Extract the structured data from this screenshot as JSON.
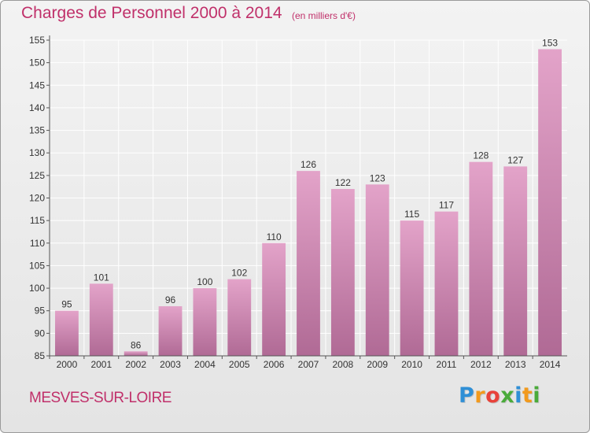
{
  "header": {
    "title": "Charges de Personnel 2000 à 2014",
    "subtitle": "(en milliers d'€)"
  },
  "footer": {
    "place_name": "MESVES-SUR-LOIRE",
    "logo": {
      "letters": [
        "P",
        "r",
        "o",
        "x",
        "i",
        "t",
        "i"
      ],
      "colors": [
        "#2f8fd6",
        "#f29a1d",
        "#e8423a",
        "#4aab3a",
        "#2f8fd6",
        "#f29a1d",
        "#4aab3a"
      ]
    }
  },
  "colors": {
    "bar_top": "#e3a3c9",
    "bar_bottom": "#b06a95",
    "grid": "#ffffff",
    "axis": "#555555"
  },
  "chart_data": {
    "type": "bar",
    "title": "Charges de Personnel 2000 à 2014",
    "subtitle": "(en milliers d'€)",
    "categories": [
      "2000",
      "2001",
      "2002",
      "2003",
      "2004",
      "2005",
      "2006",
      "2007",
      "2008",
      "2009",
      "2010",
      "2011",
      "2012",
      "2013",
      "2014"
    ],
    "values": [
      95,
      101,
      86,
      96,
      100,
      102,
      110,
      126,
      122,
      123,
      115,
      117,
      128,
      127,
      153
    ],
    "ylim": [
      85,
      155
    ],
    "yticks": [
      85,
      90,
      95,
      100,
      105,
      110,
      115,
      120,
      125,
      130,
      135,
      140,
      145,
      150,
      155
    ],
    "grid": true,
    "data_labels": true
  }
}
